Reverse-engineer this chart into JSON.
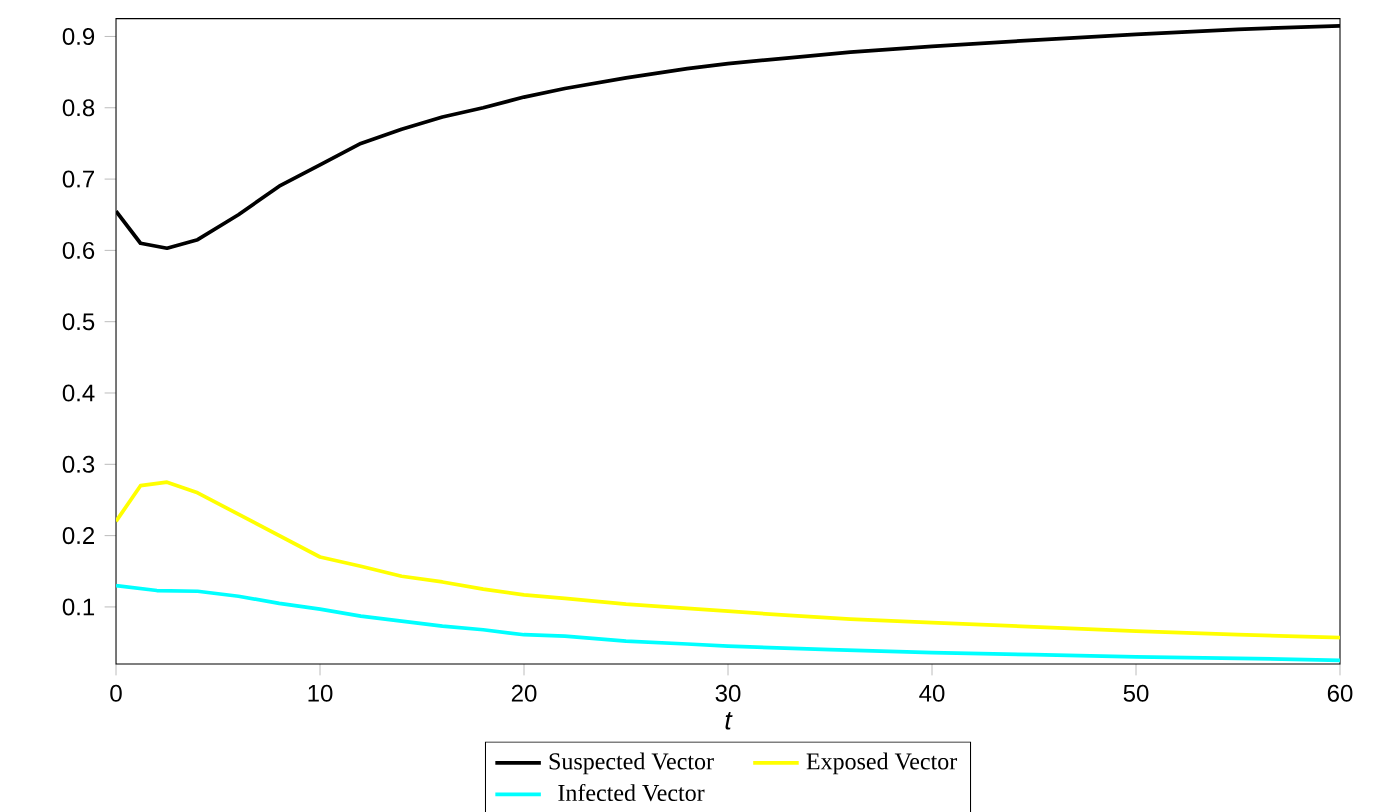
{
  "chart_data": {
    "type": "line",
    "xlabel": "t",
    "xlim": [
      0,
      60
    ],
    "ylim": [
      0.02,
      0.925
    ],
    "xticks": [
      0,
      10,
      20,
      30,
      40,
      50,
      60
    ],
    "yticks": [
      0.1,
      0.2,
      0.3,
      0.4,
      0.5,
      0.6,
      0.7,
      0.8,
      0.9
    ],
    "legend": "bottom",
    "line_style": "solid",
    "marker": "none",
    "series": [
      {
        "name": "Suspected Vector",
        "color": "#000000",
        "x": [
          0,
          1.2,
          2.5,
          4,
          6,
          8,
          10,
          12,
          14,
          16,
          18,
          20,
          22,
          25,
          28,
          30,
          33,
          36,
          40,
          45,
          50,
          55,
          60
        ],
        "values": [
          0.655,
          0.61,
          0.603,
          0.615,
          0.65,
          0.69,
          0.72,
          0.75,
          0.77,
          0.787,
          0.8,
          0.815,
          0.827,
          0.842,
          0.855,
          0.862,
          0.87,
          0.878,
          0.886,
          0.895,
          0.903,
          0.91,
          0.915
        ]
      },
      {
        "name": "Exposed Vector",
        "color": "#ffff00",
        "x": [
          0,
          1.2,
          2.5,
          4,
          6,
          8,
          10,
          12,
          14,
          16,
          18,
          20,
          22,
          25,
          28,
          30,
          33,
          36,
          40,
          45,
          50,
          55,
          60
        ],
        "values": [
          0.22,
          0.27,
          0.275,
          0.26,
          0.23,
          0.2,
          0.17,
          0.157,
          0.143,
          0.135,
          0.125,
          0.117,
          0.112,
          0.104,
          0.098,
          0.094,
          0.088,
          0.083,
          0.078,
          0.072,
          0.066,
          0.061,
          0.057
        ]
      },
      {
        "name": "Infected Vector",
        "color": "#00ffff",
        "x": [
          0,
          2,
          4,
          6,
          8,
          10,
          12,
          14,
          16,
          18,
          20,
          22,
          25,
          28,
          30,
          35,
          40,
          45,
          50,
          55,
          60
        ],
        "values": [
          0.13,
          0.123,
          0.122,
          0.115,
          0.105,
          0.097,
          0.087,
          0.08,
          0.073,
          0.068,
          0.061,
          0.059,
          0.052,
          0.048,
          0.045,
          0.04,
          0.036,
          0.033,
          0.03,
          0.028,
          0.025
        ]
      }
    ]
  }
}
